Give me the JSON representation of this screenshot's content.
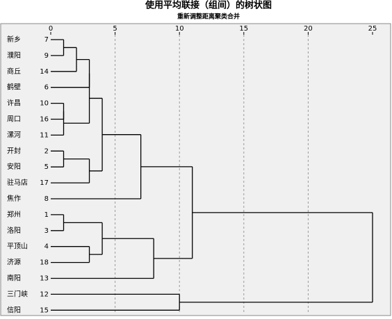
{
  "chart_data": {
    "type": "dendrogram",
    "title": "使用平均联接（组间）的树状图",
    "subtitle": "重新调整距离聚类合并",
    "xlim": [
      0,
      25
    ],
    "xticks": [
      0,
      5,
      10,
      15,
      20,
      25
    ],
    "grid": true,
    "tree": {
      "height": 25,
      "children": [
        {
          "height": 11,
          "children": [
            {
              "height": 7,
              "children": [
                {
                  "height": 4,
                  "children": [
                    {
                      "height": 3,
                      "children": [
                        {
                          "height": 3,
                          "children": [
                            {
                              "height": 2,
                              "children": [
                                {
                                  "height": 1,
                                  "children": [
                                    {
                                      "label": "新乡",
                                      "case": 7
                                    },
                                    {
                                      "label": "濮阳",
                                      "case": 9
                                    }
                                  ]
                                },
                                {
                                  "label": "商丘",
                                  "case": 14
                                }
                              ]
                            },
                            {
                              "label": "鹤壁",
                              "case": 6
                            }
                          ]
                        },
                        {
                          "height": 1,
                          "children": [
                            {
                              "height": 1,
                              "children": [
                                {
                                  "label": "许昌",
                                  "case": 10
                                },
                                {
                                  "label": "周口",
                                  "case": 16
                                }
                              ]
                            },
                            {
                              "label": "漯河",
                              "case": 11
                            }
                          ]
                        }
                      ]
                    },
                    {
                      "height": 3,
                      "children": [
                        {
                          "height": 1,
                          "children": [
                            {
                              "label": "开封",
                              "case": 2
                            },
                            {
                              "label": "安阳",
                              "case": 5
                            }
                          ]
                        },
                        {
                          "label": "驻马店",
                          "case": 17
                        }
                      ]
                    }
                  ]
                },
                {
                  "label": "焦作",
                  "case": 8
                }
              ]
            },
            {
              "height": 8,
              "children": [
                {
                  "height": 4,
                  "children": [
                    {
                      "height": 1,
                      "children": [
                        {
                          "label": "郑州",
                          "case": 1
                        },
                        {
                          "label": "洛阳",
                          "case": 3
                        }
                      ]
                    },
                    {
                      "height": 3,
                      "children": [
                        {
                          "label": "平顶山",
                          "case": 4
                        },
                        {
                          "label": "济源",
                          "case": 18
                        }
                      ]
                    }
                  ]
                },
                {
                  "label": "南阳",
                  "case": 13
                }
              ]
            }
          ]
        },
        {
          "height": 10,
          "children": [
            {
              "label": "三门峡",
              "case": 12
            },
            {
              "label": "信阳",
              "case": 15
            }
          ]
        }
      ]
    }
  }
}
